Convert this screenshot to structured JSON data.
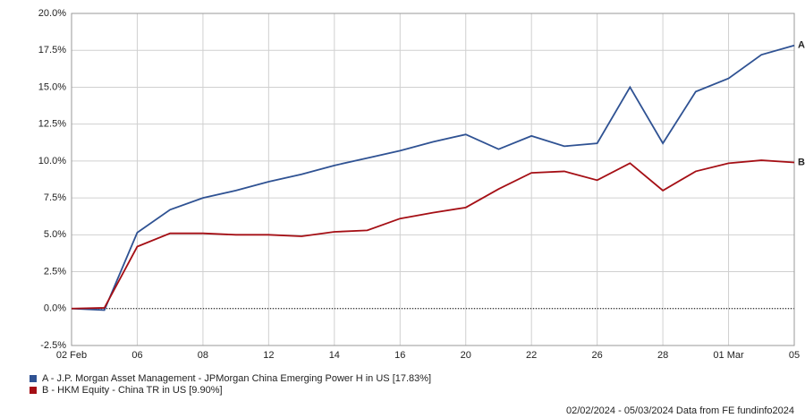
{
  "chart_data": {
    "type": "line",
    "categories": [
      "02 Feb",
      null,
      "06",
      null,
      "08",
      null,
      "12",
      null,
      "14",
      null,
      "16",
      null,
      "20",
      null,
      "22",
      null,
      "26",
      null,
      "28",
      null,
      "01 Mar",
      null,
      "05"
    ],
    "series": [
      {
        "name": "A - J.P. Morgan Asset Management - JPMorgan China Emerging Power H in US [17.83%]",
        "label": "A",
        "color": "#2f5293",
        "values": [
          0,
          -0.1,
          5.15,
          6.7,
          7.5,
          8.0,
          8.6,
          9.1,
          9.7,
          10.2,
          10.7,
          11.3,
          11.8,
          10.8,
          11.7,
          11.0,
          11.2,
          15.0,
          11.2,
          14.7,
          15.6,
          17.2,
          17.83
        ]
      },
      {
        "name": "B - HKM Equity - China TR in US [9.90%]",
        "label": "B",
        "color": "#a50f15",
        "values": [
          0,
          0.05,
          4.2,
          5.1,
          5.1,
          5.0,
          5.0,
          4.9,
          5.2,
          5.3,
          6.1,
          6.5,
          6.85,
          8.1,
          9.2,
          9.3,
          8.7,
          9.85,
          8.0,
          9.3,
          9.85,
          10.05,
          9.9
        ]
      }
    ],
    "ylim": [
      -2.5,
      20
    ],
    "yticks": [
      {
        "value": -2.5,
        "label": "-2.5%"
      },
      {
        "value": 0,
        "label": "0.0%"
      },
      {
        "value": 2.5,
        "label": "2.5%"
      },
      {
        "value": 5,
        "label": "5.0%"
      },
      {
        "value": 7.5,
        "label": "7.5%"
      },
      {
        "value": 10,
        "label": "10.0%"
      },
      {
        "value": 12.5,
        "label": "12.5%"
      },
      {
        "value": 15,
        "label": "15.0%"
      },
      {
        "value": 17.5,
        "label": "17.5%"
      },
      {
        "value": 20,
        "label": "20.0%"
      }
    ],
    "grid": true,
    "footer": "02/02/2024 - 05/03/2024 Data from FE fundinfo2024"
  }
}
